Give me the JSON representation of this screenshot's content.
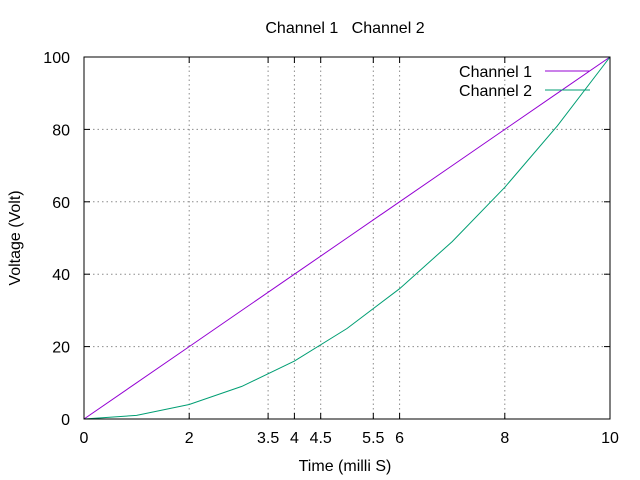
{
  "chart_data": {
    "type": "line",
    "title": "Channel 1   Channel 2",
    "xlabel": "Time (milli S)",
    "ylabel": "Voltage (Volt)",
    "xlim": [
      0,
      10
    ],
    "ylim": [
      0,
      100
    ],
    "grid": true,
    "grid_style": "dotted",
    "legend_position": "top-right",
    "x_ticks": [
      0,
      2,
      3.5,
      4,
      4.5,
      5.5,
      6,
      8,
      10
    ],
    "x_tick_labels": [
      "0",
      "2",
      "3.5",
      "4",
      "4.5",
      "5.5",
      "6",
      "8",
      "10"
    ],
    "y_ticks": [
      0,
      20,
      40,
      60,
      80,
      100
    ],
    "y_tick_labels": [
      "0",
      "20",
      "40",
      "60",
      "80",
      "100"
    ],
    "x_gridlines": [
      2,
      3.5,
      4,
      4.5,
      5.5,
      6,
      8
    ],
    "y_gridlines": [
      20,
      40,
      60,
      80
    ],
    "series": [
      {
        "name": "Channel 1",
        "color": "#9400d3",
        "x": [
          0,
          1,
          2,
          3,
          4,
          5,
          6,
          7,
          8,
          9,
          10
        ],
        "y": [
          0,
          10,
          20,
          30,
          40,
          50,
          60,
          70,
          80,
          90,
          100
        ]
      },
      {
        "name": "Channel 2",
        "color": "#009e73",
        "x": [
          0,
          1,
          2,
          3,
          4,
          5,
          6,
          7,
          8,
          9,
          10
        ],
        "y": [
          0,
          1,
          4,
          9,
          16,
          25,
          36,
          49,
          64,
          81,
          100
        ]
      }
    ]
  }
}
